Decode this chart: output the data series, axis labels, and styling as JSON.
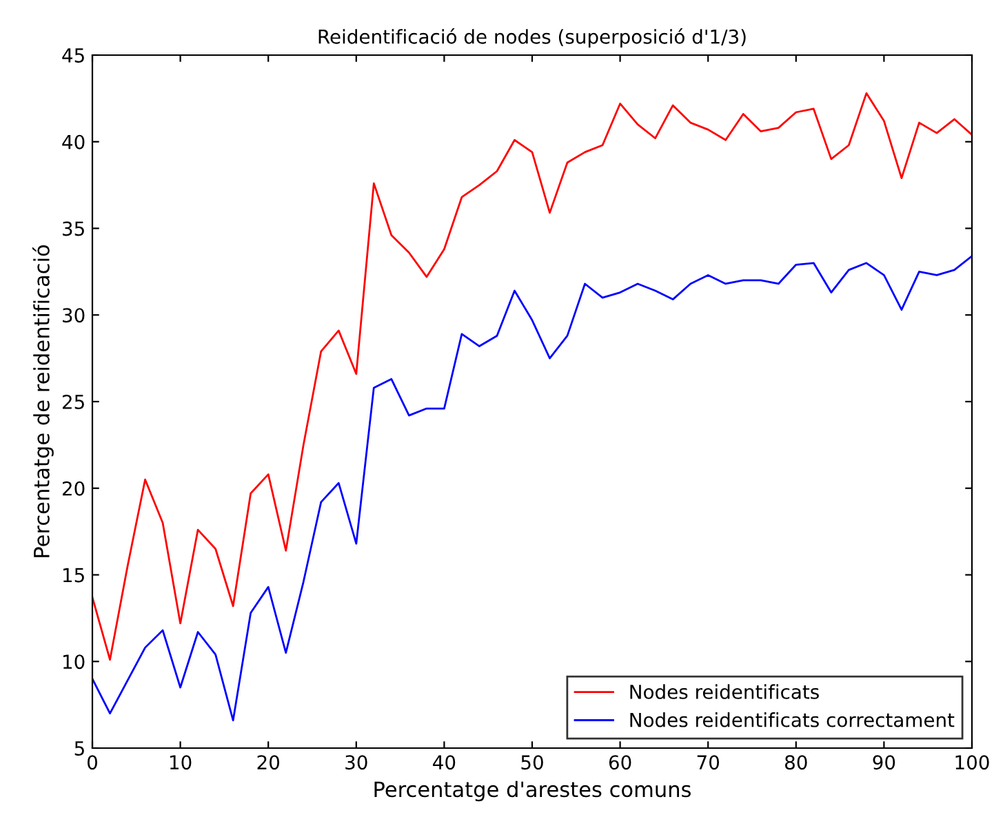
{
  "chart_data": {
    "type": "line",
    "title": "Reidentificació de nodes (superposició d'1/3)",
    "xlabel": "Percentatge d'arestes comuns",
    "ylabel": "Percentatge de reidentificació",
    "x": [
      0,
      2,
      4,
      6,
      8,
      10,
      12,
      14,
      16,
      18,
      20,
      22,
      24,
      26,
      28,
      30,
      32,
      34,
      36,
      38,
      40,
      42,
      44,
      46,
      48,
      50,
      52,
      54,
      56,
      58,
      60,
      62,
      64,
      66,
      68,
      70,
      72,
      74,
      76,
      78,
      80,
      82,
      84,
      86,
      88,
      90,
      92,
      94,
      96,
      98,
      100
    ],
    "series": [
      {
        "name": "Nodes reidentificats",
        "color": "#ff0000",
        "values": [
          13.7,
          10.1,
          15.5,
          20.5,
          18,
          12.2,
          17.6,
          16.5,
          13.2,
          19.7,
          20.8,
          16.4,
          22.5,
          27.9,
          29.1,
          26.6,
          37.6,
          34.6,
          33.6,
          32.2,
          33.8,
          36.8,
          37.5,
          38.3,
          40.1,
          39.4,
          35.9,
          38.8,
          39.4,
          39.8,
          42.2,
          41,
          40.2,
          42.1,
          41.1,
          40.7,
          40.1,
          41.6,
          40.6,
          40.8,
          41.7,
          41.9,
          39,
          39.8,
          42.8,
          41.2,
          37.9,
          41.1,
          40.5,
          41.3,
          40.4
        ]
      },
      {
        "name": "Nodes reidentificats correctament",
        "color": "#0000ff",
        "values": [
          9,
          7,
          8.9,
          10.8,
          11.8,
          8.5,
          11.7,
          10.4,
          6.6,
          12.8,
          14.3,
          10.5,
          14.6,
          19.2,
          20.3,
          16.8,
          25.8,
          26.3,
          24.2,
          24.6,
          24.6,
          28.9,
          28.2,
          28.8,
          31.4,
          29.7,
          27.5,
          28.8,
          31.8,
          31,
          31.3,
          31.8,
          31.4,
          30.9,
          31.8,
          32.3,
          31.8,
          32,
          32,
          31.8,
          32.9,
          33,
          31.3,
          32.6,
          33,
          32.3,
          30.3,
          32.5,
          32.3,
          32.6,
          33.4
        ]
      }
    ],
    "xlim": [
      0,
      100
    ],
    "ylim": [
      5,
      45
    ],
    "xticks": [
      0,
      10,
      20,
      30,
      40,
      50,
      60,
      70,
      80,
      90,
      100
    ],
    "yticks": [
      5,
      10,
      15,
      20,
      25,
      30,
      35,
      40,
      45
    ],
    "grid": false,
    "legend": "bottom right",
    "marker": "none",
    "line_style": "solid"
  }
}
